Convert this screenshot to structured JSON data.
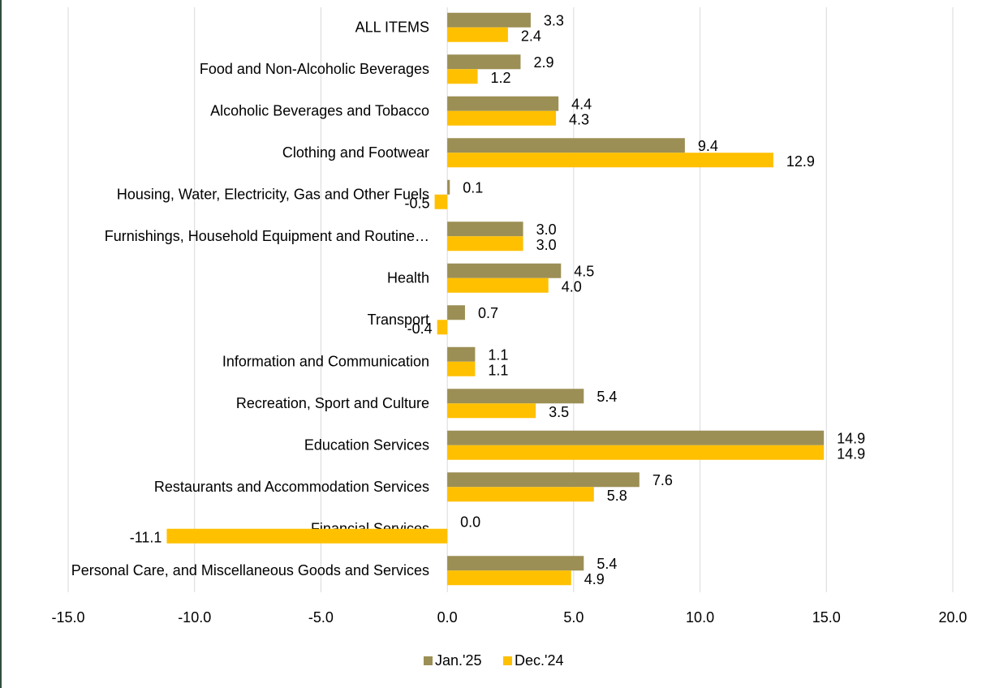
{
  "chart_data": {
    "type": "hbar",
    "categories": [
      "ALL ITEMS",
      "Food and Non-Alcoholic Beverages",
      "Alcoholic Beverages and Tobacco",
      "Clothing and Footwear",
      "Housing, Water, Electricity, Gas and Other Fuels",
      "Furnishings, Household Equipment and Routine…",
      "Health",
      "Transport",
      "Information and Communication",
      "Recreation, Sport and Culture",
      "Education Services",
      "Restaurants and Accommodation Services",
      "Financial Services",
      "Personal Care, and Miscellaneous Goods and Services"
    ],
    "series": [
      {
        "name": "Jan.'25",
        "color": "#9c8f55",
        "values": [
          3.3,
          2.9,
          4.4,
          9.4,
          0.1,
          3.0,
          4.5,
          0.7,
          1.1,
          5.4,
          14.9,
          7.6,
          0.0,
          5.4
        ],
        "value_labels": [
          "3.3",
          "2.9",
          "4.4",
          "9.4",
          "0.1",
          "3.0",
          "4.5",
          "0.7",
          "1.1",
          "5.4",
          "14.9",
          "7.6",
          "0.0",
          "5.4"
        ]
      },
      {
        "name": "Dec.'24",
        "color": "#ffc000",
        "values": [
          2.4,
          1.2,
          4.3,
          12.9,
          -0.5,
          3.0,
          4.0,
          -0.4,
          1.1,
          3.5,
          14.9,
          5.8,
          -11.1,
          4.9
        ],
        "value_labels": [
          "2.4",
          "1.2",
          "4.3",
          "12.9",
          "-0.5",
          "3.0",
          "4.0",
          "-0.4",
          "1.1",
          "3.5",
          "14.9",
          "5.8",
          "-11.1",
          "4.9"
        ]
      }
    ],
    "xlim": [
      -15,
      20
    ],
    "xticks": [
      {
        "value": -15,
        "label": "-15.0"
      },
      {
        "value": -10,
        "label": "-10.0"
      },
      {
        "value": -5,
        "label": "-5.0"
      },
      {
        "value": 0,
        "label": "0.0"
      },
      {
        "value": 5,
        "label": "5.0"
      },
      {
        "value": 10,
        "label": "10.0"
      },
      {
        "value": 15,
        "label": "15.0"
      },
      {
        "value": 20,
        "label": "20.0"
      }
    ],
    "grid": true,
    "legend": "bottom"
  }
}
